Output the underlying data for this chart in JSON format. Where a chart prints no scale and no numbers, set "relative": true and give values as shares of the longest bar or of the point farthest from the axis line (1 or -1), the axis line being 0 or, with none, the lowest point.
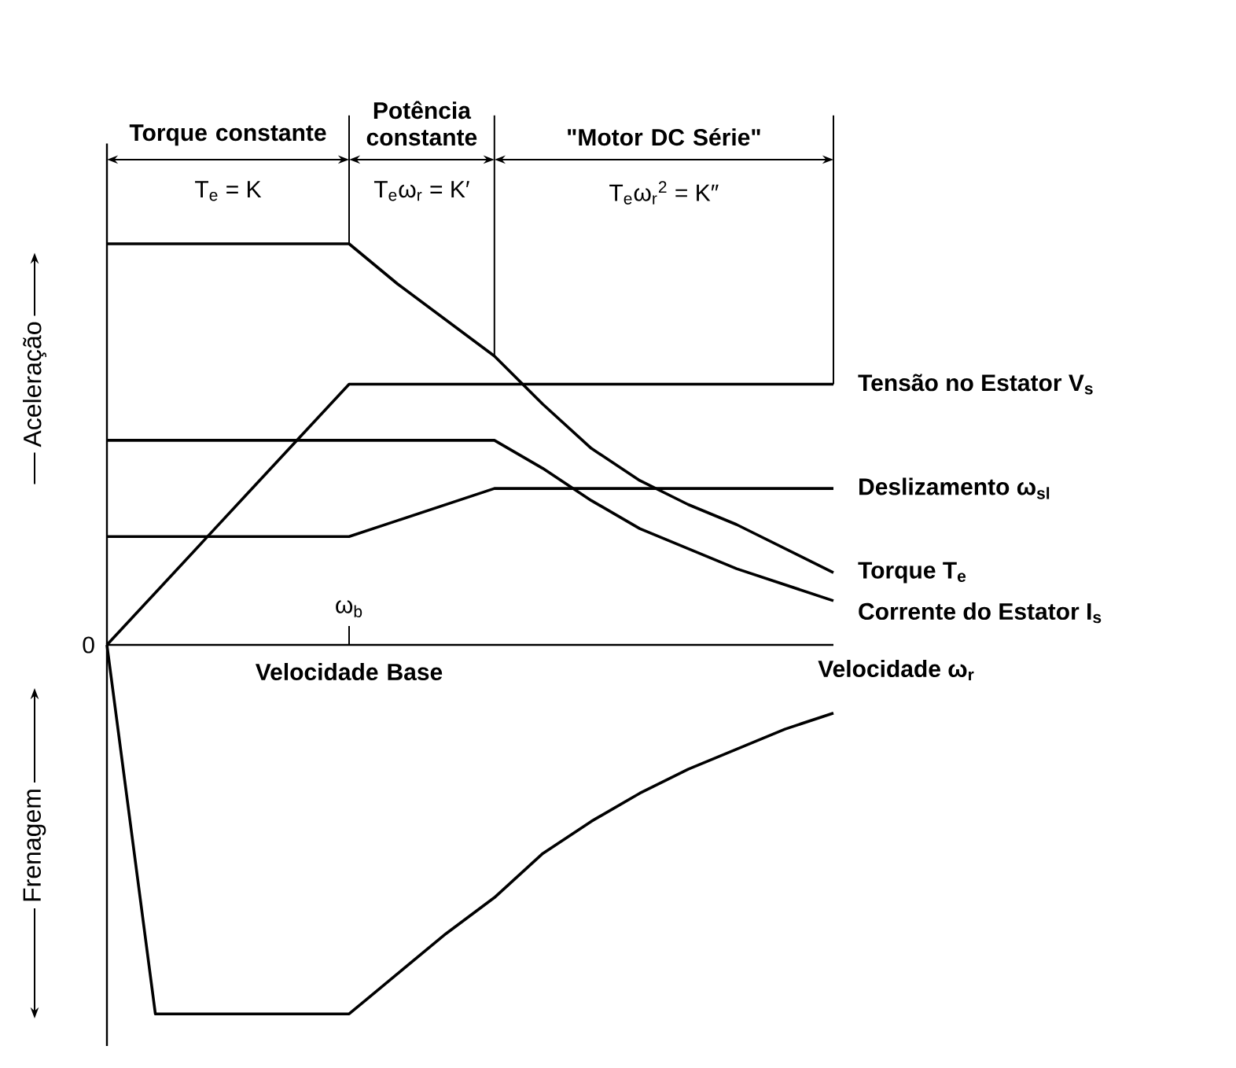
{
  "chart_data": {
    "type": "line",
    "relative": true,
    "xlabel": "Velocidade ω$_{r}$",
    "ylabel": "Aceleração",
    "categories": [
      null,
      null,
      null,
      null,
      null,
      null,
      null,
      null,
      null,
      null,
      null,
      null,
      null,
      null,
      null,
      null
    ],
    "series": [
      {
        "name": "Tensão no Estator V$_{s}$",
        "color": "#000000",
        "values": [
          0,
          0.13,
          0.26,
          0.39,
          0.52,
          0.65,
          0.65,
          0.65,
          0.65,
          0.65,
          0.65,
          0.65,
          0.65,
          0.65,
          0.65,
          0.65
        ]
      },
      {
        "name": "Deslizamento ω$_{sl}$",
        "color": "#000000",
        "values": [
          0.27,
          0.27,
          0.27,
          0.27,
          0.27,
          0.27,
          0.31,
          0.35,
          0.39,
          0.39,
          0.39,
          0.39,
          0.39,
          0.39,
          0.39,
          0.39
        ]
      },
      {
        "name": "Torque T$_{e}$",
        "color": "#000000",
        "values": [
          1,
          1,
          1,
          1,
          1,
          1,
          0.9,
          0.81,
          0.72,
          0.6,
          0.49,
          0.41,
          0.35,
          0.3,
          0.24,
          0.18
        ]
      },
      {
        "name": "Corrente do Estator I$_{s}$",
        "color": "#000000",
        "values": [
          0.51,
          0.51,
          0.51,
          0.51,
          0.51,
          0.51,
          0.51,
          0.51,
          0.51,
          0.44,
          0.36,
          0.29,
          0.24,
          0.19,
          0.15,
          0.11
        ]
      },
      {
        "color": "#000000",
        "values": [
          0,
          -0.92,
          -0.92,
          -0.92,
          -0.92,
          -0.92,
          -0.82,
          -0.72,
          -0.63,
          -0.52,
          -0.44,
          -0.37,
          -0.31,
          -0.26,
          -0.21,
          -0.17
        ]
      }
    ],
    "annotations": [
      "Torque constante",
      "Potência constante",
      "\"Motor DC Série\"",
      "T$_{e}$ = K",
      "T$_{e}$ω$_{r}$ = K′",
      "T$_{e}$ω$_{r}$$^{2}$ = K″",
      "0",
      "ω$_{b}$",
      "Velocidade Base",
      "Frenagem"
    ]
  }
}
